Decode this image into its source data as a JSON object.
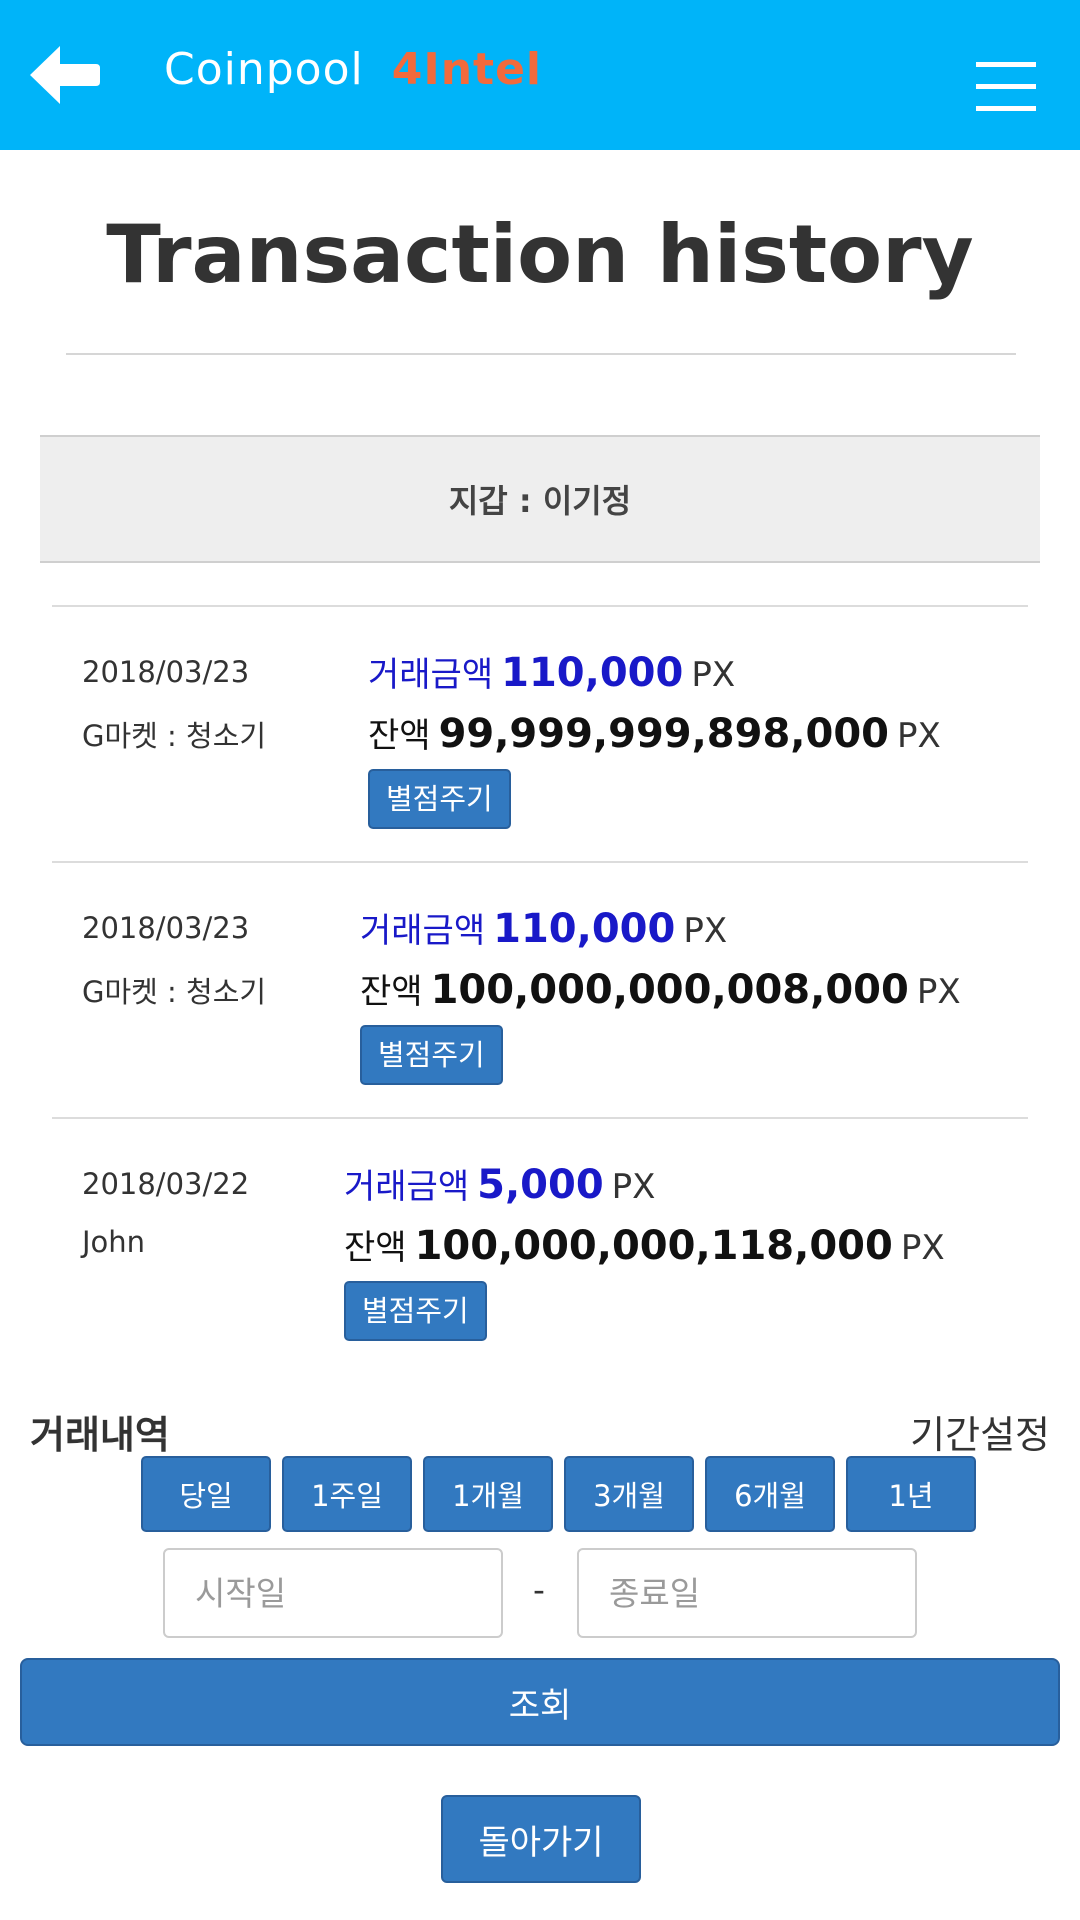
{
  "header": {
    "back_icon": "arrow-left-icon",
    "brand_name": "Coinpool",
    "brand_accent": "4Intel",
    "menu_icon": "hamburger-menu-icon",
    "bar_color": "#00b4f9",
    "accent_color": "#f26a3c"
  },
  "page": {
    "title": "Transaction history"
  },
  "wallet": {
    "label": "지갑 : 이기정"
  },
  "transactions": [
    {
      "date": "2018/03/23",
      "description": "G마켓 : 청소기",
      "amount_label": "거래금액",
      "amount": "110,000",
      "amount_unit": "PX",
      "balance_label": "잔액",
      "balance": "99,999,999,898,000",
      "balance_unit": "PX",
      "rate_button": "별점주기"
    },
    {
      "date": "2018/03/23",
      "description": "G마켓 : 청소기",
      "amount_label": "거래금액",
      "amount": "110,000",
      "amount_unit": "PX",
      "balance_label": "잔액",
      "balance": "100,000,000,008,000",
      "balance_unit": "PX",
      "rate_button": "별점주기"
    },
    {
      "date": "2018/03/22",
      "description": "John",
      "amount_label": "거래금액",
      "amount": "5,000",
      "amount_unit": "PX",
      "balance_label": "잔액",
      "balance": "100,000,000,118,000",
      "balance_unit": "PX",
      "rate_button": "별점주기"
    }
  ],
  "filter": {
    "history_label": "거래내역",
    "period_label": "기간설정",
    "periods": [
      "당일",
      "1주일",
      "1개월",
      "3개월",
      "6개월",
      "1년"
    ],
    "start_placeholder": "시작일",
    "end_placeholder": "종료일",
    "separator": "-",
    "search_button": "조회",
    "back_button": "돌아가기"
  }
}
